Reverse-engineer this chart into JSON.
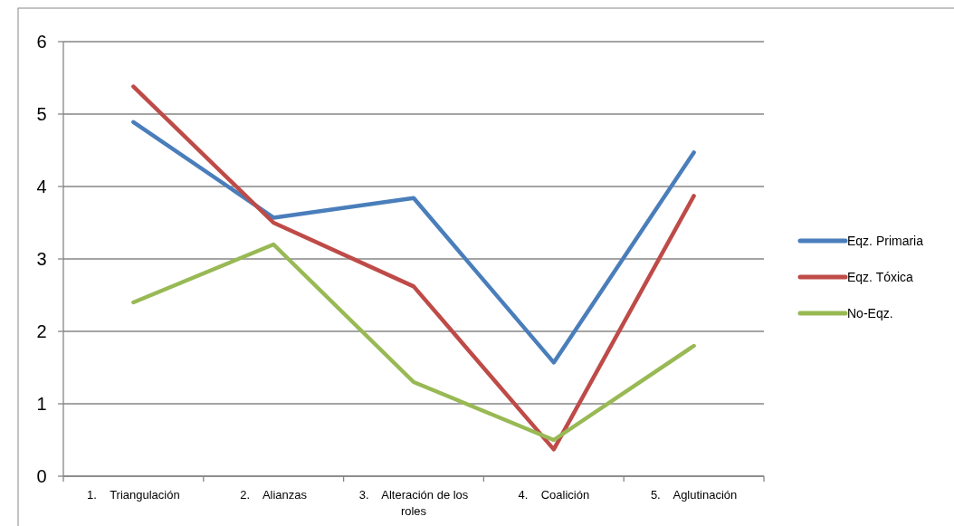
{
  "chart_data": {
    "type": "line",
    "categories": [
      "1.    Triangulación",
      "2.    Alianzas",
      "3.    Alteración de los roles",
      "4.    Coalición",
      "5.    Aglutinación"
    ],
    "series": [
      {
        "name": "Eqz. Primaria",
        "color": "#4a7ebb",
        "values": [
          4.89,
          3.57,
          3.84,
          1.57,
          4.47
        ]
      },
      {
        "name": "Eqz. Tóxica",
        "color": "#be4b48",
        "values": [
          5.38,
          3.5,
          2.62,
          0.37,
          3.87
        ]
      },
      {
        "name": "No-Eqz.",
        "color": "#98b954",
        "values": [
          2.4,
          3.2,
          1.3,
          0.5,
          1.8
        ]
      }
    ],
    "ylim": [
      0,
      6
    ],
    "yticks": [
      0,
      1,
      2,
      3,
      4,
      5,
      6
    ],
    "grid": "y",
    "legend": "right",
    "marker": "none",
    "line_style": "solid"
  }
}
